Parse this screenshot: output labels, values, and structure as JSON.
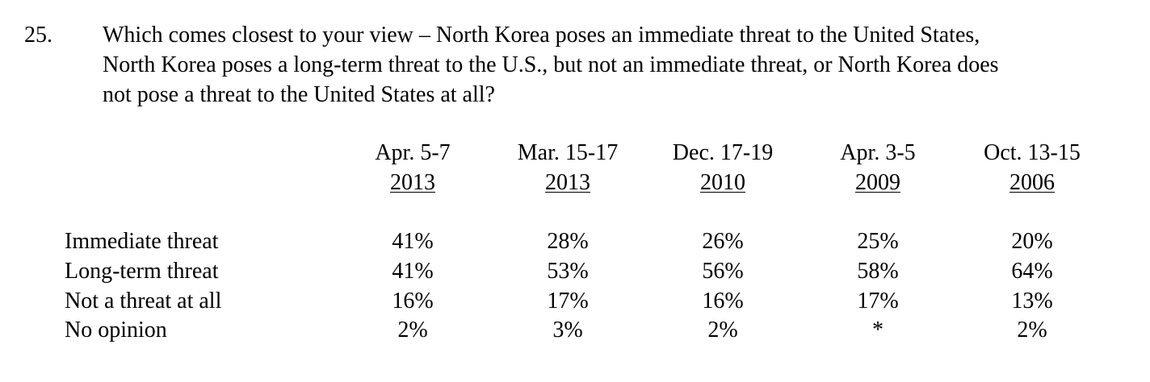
{
  "question": {
    "number": "25.",
    "lines": [
      "Which comes closest to your view – North Korea poses an immediate threat to the United States,",
      "North Korea poses a long-term threat to the U.S., but not an immediate threat, or North Korea does",
      "not pose a threat to the United States at all?"
    ]
  },
  "table": {
    "columns": [
      {
        "date": "Apr. 5-7",
        "year": "2013"
      },
      {
        "date": "Mar. 15-17",
        "year": "2013"
      },
      {
        "date": "Dec. 17-19",
        "year": "2010"
      },
      {
        "date": "Apr. 3-5",
        "year": "2009"
      },
      {
        "date": "Oct. 13-15",
        "year": "2006"
      }
    ],
    "rows": [
      {
        "label": "Immediate threat",
        "values": [
          "41%",
          "28%",
          "26%",
          "25%",
          "20%"
        ]
      },
      {
        "label": "Long-term threat",
        "values": [
          "41%",
          "53%",
          "56%",
          "58%",
          "64%"
        ]
      },
      {
        "label": "Not a threat at all",
        "values": [
          "16%",
          "17%",
          "16%",
          "17%",
          "13%"
        ]
      },
      {
        "label": "No opinion",
        "values": [
          "2%",
          "3%",
          "2%",
          "*",
          "2%"
        ]
      }
    ]
  }
}
